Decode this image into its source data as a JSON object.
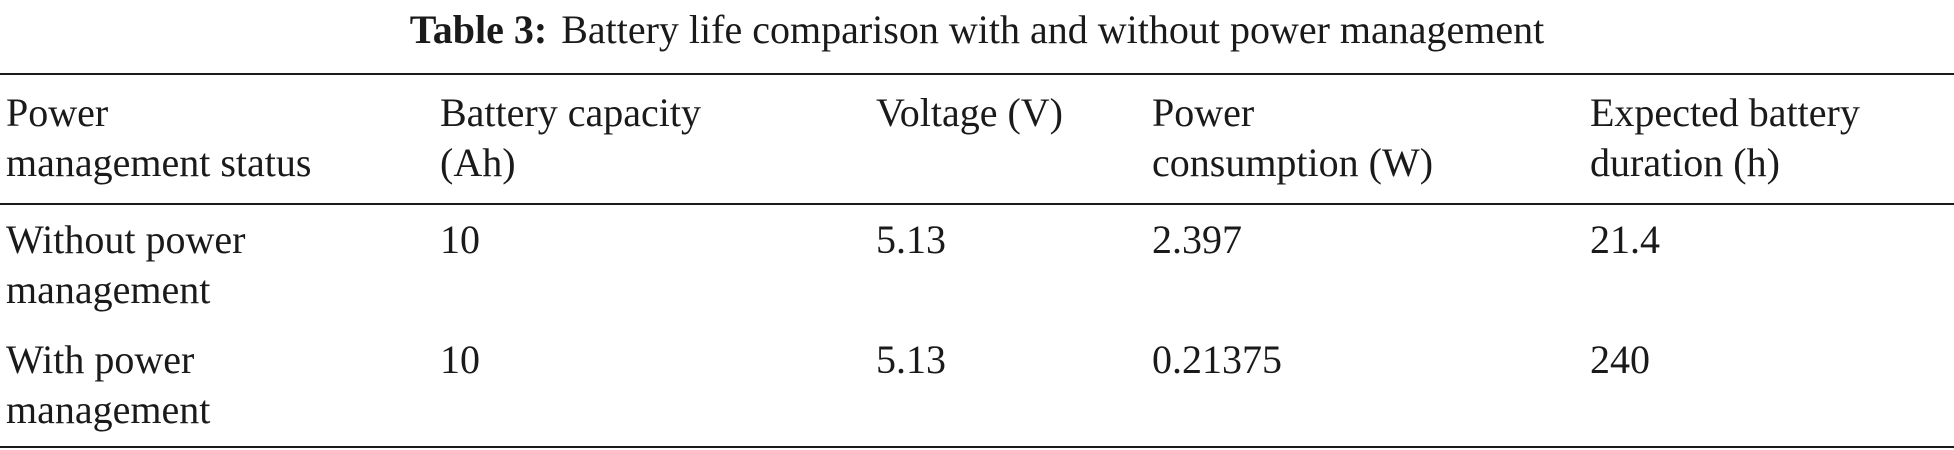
{
  "caption": {
    "label": "Table 3:",
    "text": "Battery life comparison with and without power management"
  },
  "table": {
    "headers": [
      [
        "Power",
        "management status"
      ],
      [
        "Battery capacity",
        "(Ah)"
      ],
      [
        "Voltage (V)"
      ],
      [
        "Power",
        "consumption (W)"
      ],
      [
        "Expected battery",
        "duration (h)"
      ]
    ],
    "rows": [
      {
        "status": [
          "Without power",
          "management"
        ],
        "capacity": "10",
        "voltage": "5.13",
        "power": "2.397",
        "duration": "21.4"
      },
      {
        "status": [
          "With power",
          "management"
        ],
        "capacity": "10",
        "voltage": "5.13",
        "power": "0.21375",
        "duration": "240"
      }
    ]
  }
}
